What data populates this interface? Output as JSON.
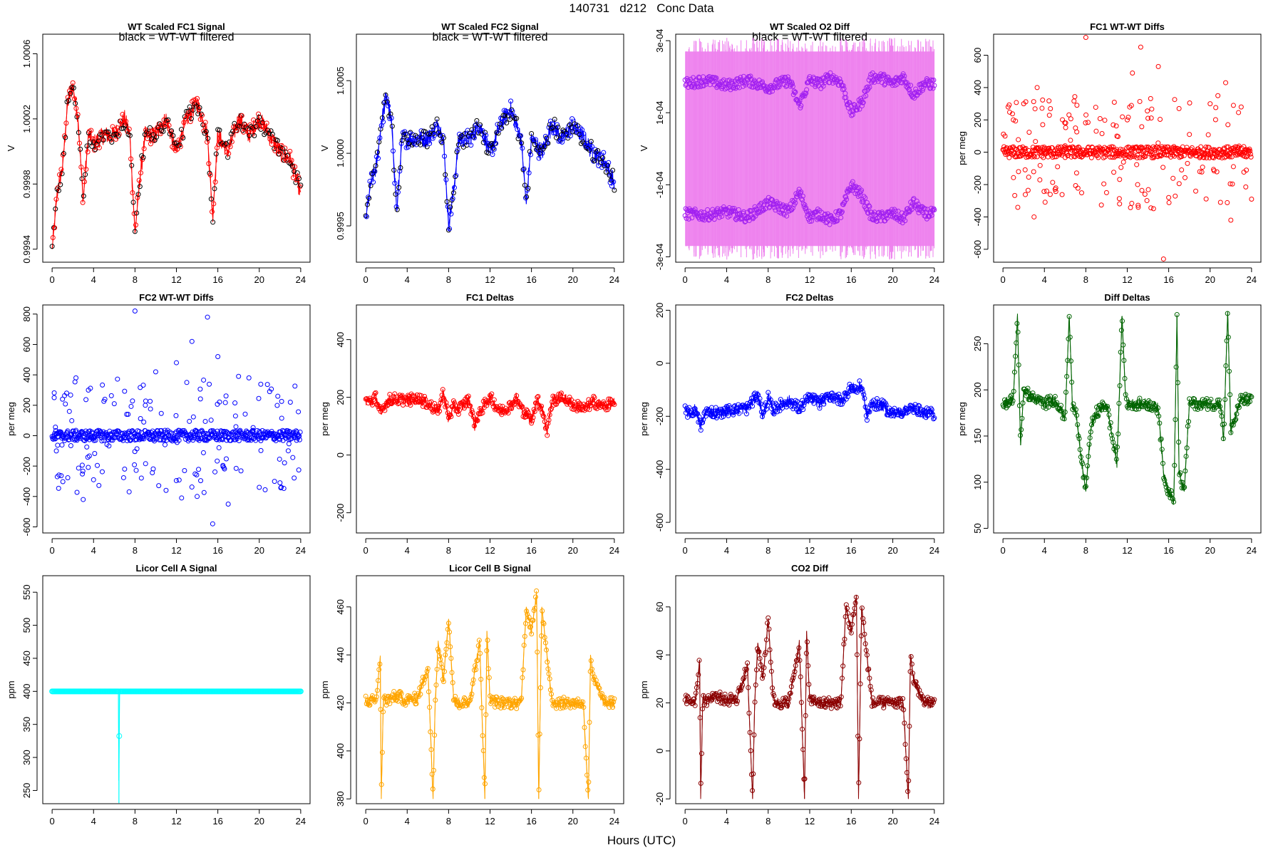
{
  "figure": {
    "title": "140731   d212   Conc Data",
    "x_axis_title": "Hours (UTC)"
  },
  "chart_data": [
    {
      "type": "line",
      "title": "WT Scaled FC1 Signal",
      "annotation": "black = WT-WT filtered",
      "ylabel": "V",
      "color": "#ff0000",
      "overlay_color": "#000000",
      "markers": true,
      "xlim": [
        0,
        24
      ],
      "ylim": [
        0.99932,
        1.00072
      ],
      "xticks": [
        0,
        4,
        8,
        12,
        16,
        20,
        24
      ],
      "yticks": [
        0.9994,
        0.9998,
        1.0002,
        1.0006
      ],
      "yticklabels": [
        "0.9994",
        "0.9998",
        "1.0002",
        "1.0006"
      ],
      "x": [
        0,
        0.5,
        1,
        1.5,
        2,
        2.5,
        3,
        3.5,
        4,
        5,
        6,
        7,
        7.5,
        8,
        8.5,
        9,
        10,
        11,
        12,
        13,
        14,
        15,
        15.5,
        16,
        17,
        18,
        19,
        20,
        21,
        22,
        23,
        24
      ],
      "values": [
        0.9994,
        0.99975,
        0.9999,
        1.0003,
        1.0004,
        1.0002,
        0.9997,
        1.0001,
        1.00005,
        1.0001,
        1.0001,
        1.0002,
        1.0001,
        0.9995,
        0.99985,
        1.0001,
        1.0001,
        1.0002,
        1.0,
        1.0002,
        1.0003,
        1.0001,
        0.9996,
        1.0001,
        1.0,
        1.0002,
        1.0001,
        1.0002,
        1.0001,
        1.0,
        0.99995,
        0.99975
      ]
    },
    {
      "type": "line",
      "title": "WT Scaled FC2 Signal",
      "annotation": "black = WT-WT filtered",
      "ylabel": "V",
      "color": "#0000ff",
      "overlay_color": "#000000",
      "markers": true,
      "xlim": [
        0,
        24
      ],
      "ylim": [
        0.99925,
        1.00082
      ],
      "xticks": [
        0,
        4,
        8,
        12,
        16,
        20,
        24
      ],
      "yticks": [
        0.9995,
        1.0,
        1.0005
      ],
      "yticklabels": [
        "0.9995",
        "1.0000",
        "1.0005"
      ],
      "x": [
        0,
        0.5,
        1,
        1.5,
        2,
        2.5,
        3,
        3.5,
        4,
        5,
        6,
        7,
        7.5,
        8,
        8.5,
        9,
        10,
        11,
        12,
        13,
        14,
        15,
        15.5,
        16,
        17,
        18,
        19,
        20,
        21,
        22,
        23,
        24
      ],
      "values": [
        0.99955,
        0.9998,
        0.9999,
        1.0002,
        1.0004,
        1.0002,
        0.9996,
        1.0001,
        1.0001,
        1.0001,
        1.0001,
        1.0002,
        1.0001,
        0.9995,
        0.99975,
        1.0001,
        1.0001,
        1.0002,
        1.0,
        1.0002,
        1.0003,
        1.0001,
        0.99965,
        1.0001,
        1.0,
        1.0002,
        1.0001,
        1.0002,
        1.0001,
        1.0,
        0.99995,
        0.9998
      ]
    },
    {
      "type": "line",
      "title": "WT Scaled O2 Diff",
      "annotation": "black = WT-WT filtered",
      "ylabel": "V",
      "color": "#ee82ee",
      "marker_color": "#a020f0",
      "markers": true,
      "xlim": [
        0,
        24
      ],
      "ylim": [
        -0.000315,
        0.000318
      ],
      "xticks": [
        0,
        4,
        8,
        12,
        16,
        20,
        24
      ],
      "yticks": [
        -0.0003,
        -0.0001,
        0.0001,
        0.0003
      ],
      "yticklabels": [
        "-3e-04",
        "-1e-04",
        "1e-04",
        "3e-04"
      ],
      "band": [
        -0.00027,
        0.00027
      ],
      "x": [
        0,
        2,
        4,
        6,
        8,
        10,
        11,
        12,
        13,
        14,
        15,
        16,
        17,
        18,
        19,
        20,
        21,
        22,
        23,
        24
      ],
      "upper": [
        0.00018,
        0.00019,
        0.000175,
        0.00019,
        0.00017,
        0.00019,
        0.00012,
        0.00019,
        0.00018,
        0.0002,
        0.000185,
        0.0001,
        0.00013,
        0.0002,
        0.000195,
        0.00018,
        0.0002,
        0.00015,
        0.00018,
        0.00018
      ],
      "lower": [
        -0.00018,
        -0.000185,
        -0.000175,
        -0.00019,
        -0.00015,
        -0.000175,
        -0.00012,
        -0.00019,
        -0.00018,
        -0.0002,
        -0.00018,
        -0.0001,
        -0.00013,
        -0.00019,
        -0.00019,
        -0.00018,
        -0.000195,
        -0.00015,
        -0.00018,
        -0.00018
      ]
    },
    {
      "type": "scatter",
      "title": "FC1 WT-WT Diffs",
      "ylabel": "per meg",
      "color": "#ff0000",
      "xlim": [
        0,
        24
      ],
      "ylim": [
        -680,
        730
      ],
      "xticks": [
        0,
        4,
        8,
        12,
        16,
        20,
        24
      ],
      "yticks": [
        -600,
        -400,
        -200,
        0,
        200,
        400,
        600
      ],
      "yticklabels": [
        "-600",
        "-400",
        "-200",
        "0",
        "200",
        "400",
        "600"
      ],
      "x": [
        0.2,
        0.5,
        1,
        1.5,
        2,
        3,
        3.3,
        4,
        6,
        7,
        8,
        9,
        10,
        11,
        12,
        12.5,
        13,
        13.3,
        14,
        15,
        15.5,
        16,
        17,
        18,
        19,
        20,
        21,
        21.5,
        22,
        23,
        24
      ],
      "values": [
        100,
        280,
        200,
        -120,
        300,
        -400,
        400,
        20,
        40,
        150,
        710,
        130,
        -250,
        100,
        200,
        490,
        -200,
        650,
        210,
        530,
        -660,
        -280,
        270,
        110,
        -120,
        300,
        -310,
        430,
        -420,
        280,
        -290
      ]
    },
    {
      "type": "scatter",
      "title": "FC2 WT-WT Diffs",
      "ylabel": "per meg",
      "color": "#0000ff",
      "xlim": [
        0,
        24
      ],
      "ylim": [
        -640,
        860
      ],
      "xticks": [
        0,
        4,
        8,
        12,
        16,
        20,
        24
      ],
      "yticks": [
        -600,
        -400,
        -200,
        0,
        200,
        400,
        600,
        800
      ],
      "yticklabels": [
        "-600",
        "-400",
        "-200",
        "0",
        "200",
        "400",
        "600",
        "800"
      ],
      "x": [
        0.2,
        0.5,
        1,
        2.3,
        3,
        3.5,
        4,
        6,
        7,
        8,
        9,
        10,
        11,
        12,
        12.5,
        13,
        13.5,
        14,
        15,
        15.5,
        16,
        17,
        18,
        19,
        20,
        21,
        22,
        23
      ],
      "values": [
        250,
        -270,
        240,
        380,
        -420,
        300,
        -290,
        210,
        -220,
        820,
        200,
        420,
        -360,
        480,
        -410,
        350,
        620,
        -400,
        780,
        -580,
        520,
        -450,
        390,
        380,
        -340,
        290,
        -310,
        220
      ]
    },
    {
      "type": "line",
      "title": "FC1 Deltas",
      "ylabel": "per meg",
      "color": "#ff0000",
      "markers": true,
      "xlim": [
        0,
        24
      ],
      "ylim": [
        -270,
        520
      ],
      "xticks": [
        0,
        4,
        8,
        12,
        16,
        20,
        24
      ],
      "yticks": [
        -200,
        0,
        200,
        400
      ],
      "yticklabels": [
        "-200",
        "0",
        "200",
        "400"
      ],
      "x": [
        0,
        0.5,
        1,
        1.5,
        2,
        3,
        4,
        5,
        6,
        7,
        7.5,
        8,
        8.5,
        9,
        10,
        10.5,
        11,
        12,
        13,
        14,
        14.5,
        15,
        16,
        16.5,
        17,
        17.5,
        18,
        19,
        20,
        21,
        22,
        23,
        24
      ],
      "values": [
        190,
        185,
        200,
        140,
        190,
        195,
        190,
        195,
        180,
        150,
        220,
        120,
        170,
        160,
        190,
        100,
        150,
        200,
        150,
        170,
        200,
        160,
        120,
        190,
        170,
        80,
        190,
        200,
        175,
        160,
        185,
        170,
        180
      ]
    },
    {
      "type": "line",
      "title": "FC2 Deltas",
      "ylabel": "per meg",
      "color": "#0000ff",
      "markers": true,
      "xlim": [
        0,
        24
      ],
      "ylim": [
        -640,
        220
      ],
      "xticks": [
        0,
        4,
        8,
        12,
        16,
        20,
        24
      ],
      "yticks": [
        -600,
        -400,
        -200,
        0,
        200
      ],
      "yticklabels": [
        "-600",
        "-400",
        "-200",
        "0",
        "200"
      ],
      "x": [
        0,
        0.5,
        1,
        1.5,
        2,
        3,
        4,
        5,
        6,
        7,
        7.5,
        8,
        8.5,
        9,
        10,
        11,
        12,
        13,
        14,
        15,
        16,
        16.5,
        17,
        17.5,
        18,
        19,
        20,
        21,
        22,
        23,
        24
      ],
      "values": [
        -180,
        -190,
        -170,
        -240,
        -180,
        -185,
        -180,
        -175,
        -170,
        -120,
        -200,
        -130,
        -180,
        -160,
        -140,
        -170,
        -130,
        -150,
        -120,
        -140,
        -90,
        -100,
        -80,
        -200,
        -150,
        -160,
        -190,
        -180,
        -170,
        -190,
        -190
      ]
    },
    {
      "type": "line",
      "title": "Diff Deltas",
      "ylabel": "per meg",
      "color": "#006400",
      "markers": true,
      "xlim": [
        0,
        24
      ],
      "ylim": [
        45,
        292
      ],
      "xticks": [
        0,
        4,
        8,
        12,
        16,
        20,
        24
      ],
      "yticks": [
        50,
        100,
        150,
        200,
        250
      ],
      "yticklabels": [
        "50",
        "100",
        "150",
        "200",
        "250"
      ],
      "x": [
        0,
        1,
        1.4,
        1.7,
        2,
        3,
        4,
        5,
        6,
        6.4,
        6.7,
        7,
        7.5,
        8,
        8.5,
        9,
        10,
        11,
        11.5,
        11.8,
        12,
        13,
        14,
        15,
        15.5,
        16,
        16.5,
        16.8,
        17,
        17.5,
        18,
        19,
        20,
        21,
        21.3,
        21.7,
        22,
        23,
        24
      ],
      "values": [
        185,
        190,
        280,
        140,
        200,
        190,
        185,
        190,
        170,
        280,
        185,
        180,
        130,
        90,
        160,
        175,
        185,
        120,
        280,
        200,
        185,
        185,
        185,
        180,
        110,
        90,
        80,
        280,
        110,
        90,
        185,
        185,
        185,
        185,
        145,
        285,
        155,
        190,
        190
      ]
    },
    {
      "type": "line",
      "title": "Licor Cell A Signal",
      "ylabel": "ppm",
      "color": "#00ffff",
      "markers": true,
      "xlim": [
        0,
        24
      ],
      "ylim": [
        230,
        575
      ],
      "xticks": [
        0,
        4,
        8,
        12,
        16,
        20,
        24
      ],
      "yticks": [
        250,
        300,
        350,
        400,
        450,
        500,
        550
      ],
      "yticklabels": [
        "250",
        "300",
        "350",
        "400",
        "450",
        "500",
        "550"
      ],
      "x": [
        0,
        6.4,
        6.45,
        6.5,
        24
      ],
      "values": [
        400,
        400,
        231,
        400,
        400
      ]
    },
    {
      "type": "line",
      "title": "Licor Cell B Signal",
      "ylabel": "ppm",
      "color": "#ffa500",
      "markers": true,
      "xlim": [
        0,
        24
      ],
      "ylim": [
        378,
        473
      ],
      "xticks": [
        0,
        4,
        8,
        12,
        16,
        20,
        24
      ],
      "yticks": [
        380,
        400,
        420,
        440,
        460
      ],
      "yticklabels": [
        "380",
        "400",
        "420",
        "440",
        "460"
      ],
      "x": [
        0,
        1,
        1.4,
        1.5,
        1.7,
        2,
        3,
        4,
        5,
        6,
        6.5,
        6.7,
        7,
        7.5,
        8,
        8.5,
        9,
        10,
        11,
        11.5,
        11.7,
        12,
        13,
        14,
        15,
        15.5,
        16,
        16.5,
        16.7,
        17,
        17.5,
        18,
        19,
        20,
        21,
        21.5,
        21.7,
        22,
        23,
        24
      ],
      "values": [
        421,
        421,
        439,
        380,
        422,
        421,
        423,
        421,
        422,
        435,
        380,
        420,
        445,
        430,
        455,
        421,
        420,
        420,
        445,
        380,
        450,
        421,
        420,
        420,
        420,
        460,
        450,
        465,
        380,
        460,
        440,
        420,
        420,
        420,
        420,
        380,
        440,
        430,
        420,
        420
      ]
    },
    {
      "type": "line",
      "title": "CO2 Diff",
      "ylabel": "ppm",
      "color": "#8b0000",
      "markers": true,
      "xlim": [
        0,
        24
      ],
      "ylim": [
        -22,
        73
      ],
      "xticks": [
        0,
        4,
        8,
        12,
        16,
        20,
        24
      ],
      "yticks": [
        -20,
        0,
        20,
        40,
        60
      ],
      "yticklabels": [
        "-20",
        "0",
        "20",
        "40",
        "60"
      ],
      "x": [
        0,
        1,
        1.4,
        1.5,
        1.7,
        2,
        3,
        4,
        5,
        6,
        6.5,
        6.7,
        7,
        7.5,
        8,
        8.5,
        9,
        10,
        11,
        11.5,
        11.7,
        12,
        13,
        14,
        15,
        15.5,
        16,
        16.5,
        16.7,
        17,
        17.5,
        18,
        19,
        20,
        21,
        21.5,
        21.7,
        22,
        23,
        24
      ],
      "values": [
        21,
        21,
        38,
        -20,
        22,
        21,
        23,
        21,
        22,
        35,
        -20,
        20,
        45,
        30,
        55,
        21,
        20,
        20,
        45,
        -20,
        50,
        21,
        20,
        20,
        20,
        60,
        50,
        65,
        -20,
        60,
        40,
        20,
        20,
        20,
        20,
        -20,
        40,
        30,
        20,
        20
      ]
    }
  ]
}
